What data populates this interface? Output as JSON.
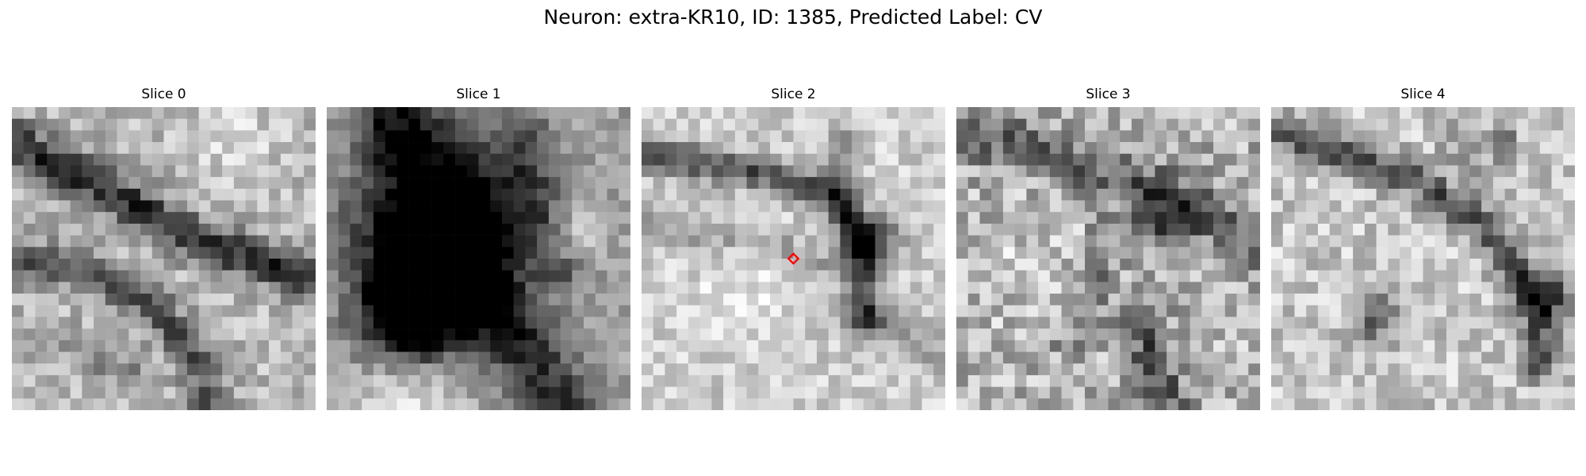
{
  "figure": {
    "title": "Neuron: extra-KR10, ID: 1385, Predicted Label: CV"
  },
  "slices": [
    {
      "label": "Slice 0"
    },
    {
      "label": "Slice 1"
    },
    {
      "label": "Slice 2"
    },
    {
      "label": "Slice 3"
    },
    {
      "label": "Slice 4"
    }
  ],
  "marker": {
    "slice_index": 2,
    "color": "#ff0000",
    "shape": "diamond"
  },
  "colormap": "grayscale"
}
